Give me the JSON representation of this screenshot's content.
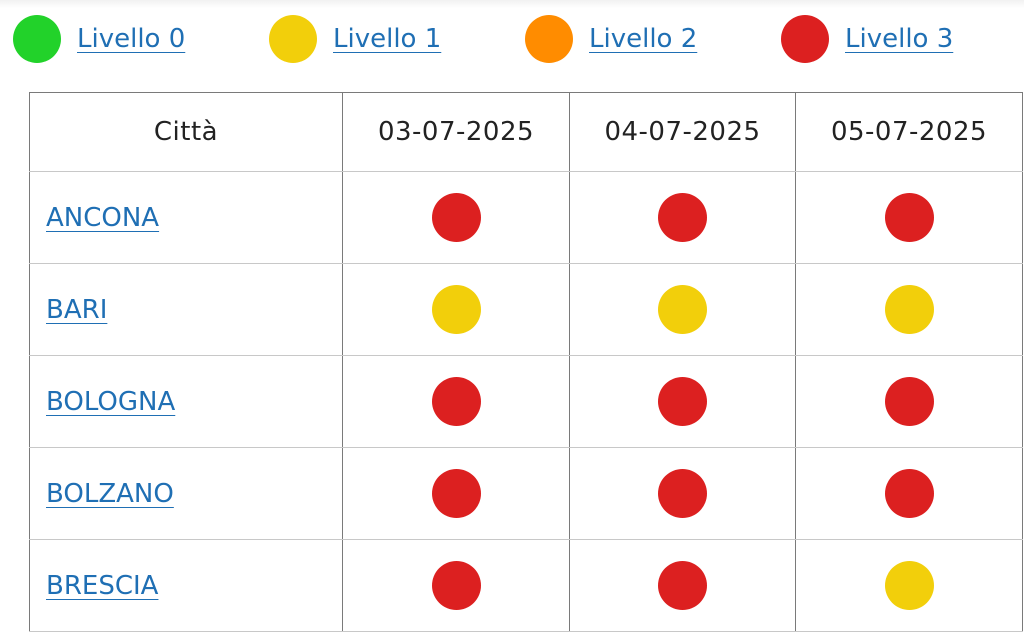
{
  "colors": {
    "link": "#1f6fb4",
    "level_0": "#22d22a",
    "level_1": "#f2cf0b",
    "level_2": "#ff8c00",
    "level_3": "#dc2020"
  },
  "legend": [
    {
      "label": "Livello 0",
      "level": 0,
      "color": "#22d22a"
    },
    {
      "label": "Livello 1",
      "level": 1,
      "color": "#f2cf0b"
    },
    {
      "label": "Livello 2",
      "level": 2,
      "color": "#ff8c00"
    },
    {
      "label": "Livello 3",
      "level": 3,
      "color": "#dc2020"
    }
  ],
  "table": {
    "headers": [
      "Città",
      "03-07-2025",
      "04-07-2025",
      "05-07-2025"
    ],
    "rows": [
      {
        "city": "ANCONA",
        "levels": [
          3,
          3,
          3
        ]
      },
      {
        "city": "BARI",
        "levels": [
          1,
          1,
          1
        ]
      },
      {
        "city": "BOLOGNA",
        "levels": [
          3,
          3,
          3
        ]
      },
      {
        "city": "BOLZANO",
        "levels": [
          3,
          3,
          3
        ]
      },
      {
        "city": "BRESCIA",
        "levels": [
          3,
          3,
          1
        ]
      }
    ]
  }
}
